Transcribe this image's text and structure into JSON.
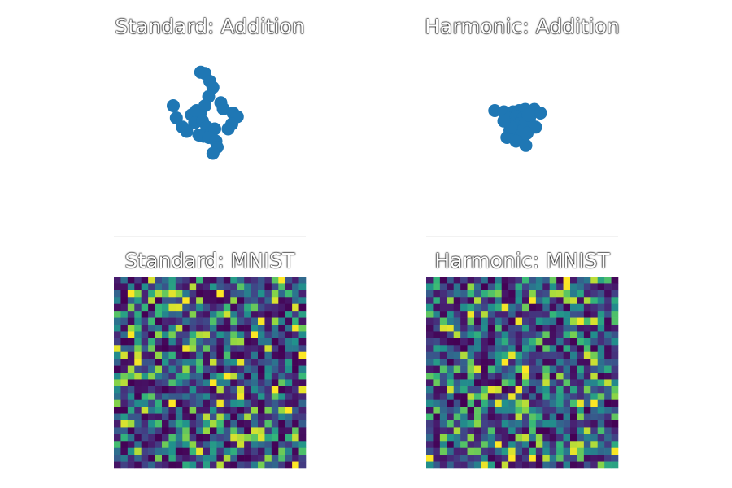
{
  "figure": {
    "background": "#ffffff",
    "scatter_color": "#1f77b4",
    "colormap": "viridis"
  },
  "chart_data": [
    {
      "type": "scatter",
      "title": "Standard: Addition",
      "axes_visible": false,
      "color": "#1f77b4",
      "xlim": [
        -1.6,
        1.6
      ],
      "ylim": [
        -1.6,
        1.6
      ],
      "points": [
        [
          -0.15,
          0.95
        ],
        [
          -0.08,
          0.93
        ],
        [
          0.0,
          0.8
        ],
        [
          0.05,
          0.7
        ],
        [
          -0.02,
          0.55
        ],
        [
          0.18,
          0.45
        ],
        [
          0.22,
          0.35
        ],
        [
          0.38,
          0.28
        ],
        [
          0.45,
          0.22
        ],
        [
          0.36,
          0.1
        ],
        [
          0.3,
          0.02
        ],
        [
          -0.6,
          0.4
        ],
        [
          -0.55,
          0.2
        ],
        [
          -0.45,
          0.05
        ],
        [
          -0.38,
          -0.02
        ],
        [
          -0.3,
          0.25
        ],
        [
          -0.22,
          0.32
        ],
        [
          -0.15,
          0.3
        ],
        [
          -0.25,
          0.12
        ],
        [
          -0.12,
          0.15
        ],
        [
          -0.05,
          0.05
        ],
        [
          -0.18,
          -0.08
        ],
        [
          -0.1,
          -0.1
        ],
        [
          0.02,
          -0.05
        ],
        [
          0.08,
          0.02
        ],
        [
          -0.02,
          -0.12
        ],
        [
          0.1,
          -0.18
        ],
        [
          0.12,
          -0.28
        ],
        [
          0.05,
          -0.38
        ],
        [
          -0.08,
          0.4
        ]
      ]
    },
    {
      "type": "scatter",
      "title": "Harmonic: Addition",
      "axes_visible": false,
      "color": "#1f77b4",
      "xlim": [
        -1.6,
        1.6
      ],
      "ylim": [
        -1.6,
        1.6
      ],
      "points": [
        [
          -0.45,
          0.32
        ],
        [
          -0.3,
          0.3
        ],
        [
          -0.15,
          0.3
        ],
        [
          -0.05,
          0.32
        ],
        [
          0.05,
          0.34
        ],
        [
          0.2,
          0.34
        ],
        [
          0.3,
          0.28
        ],
        [
          -0.2,
          0.2
        ],
        [
          -0.1,
          0.22
        ],
        [
          0.02,
          0.2
        ],
        [
          0.12,
          0.2
        ],
        [
          -0.15,
          0.1
        ],
        [
          -0.05,
          0.1
        ],
        [
          0.05,
          0.12
        ],
        [
          0.15,
          0.08
        ],
        [
          0.22,
          0.05
        ],
        [
          -0.2,
          0.0
        ],
        [
          -0.08,
          -0.02
        ],
        [
          0.02,
          0.0
        ],
        [
          -0.12,
          -0.1
        ],
        [
          -0.02,
          -0.08
        ],
        [
          0.08,
          -0.05
        ],
        [
          -0.25,
          -0.12
        ],
        [
          -0.1,
          -0.18
        ],
        [
          0.06,
          -0.25
        ],
        [
          -0.18,
          0.05
        ],
        [
          0.1,
          0.25
        ],
        [
          -0.3,
          0.15
        ]
      ]
    },
    {
      "type": "heatmap",
      "title": "Standard: MNIST",
      "axes_visible": false,
      "colormap": "viridis",
      "rows": 28,
      "cols": 28,
      "seed": 7,
      "value_range": [
        0,
        1
      ]
    },
    {
      "type": "heatmap",
      "title": "Harmonic: MNIST",
      "axes_visible": false,
      "colormap": "viridis",
      "rows": 28,
      "cols": 28,
      "seed": 19,
      "value_range": [
        0,
        1
      ]
    }
  ]
}
